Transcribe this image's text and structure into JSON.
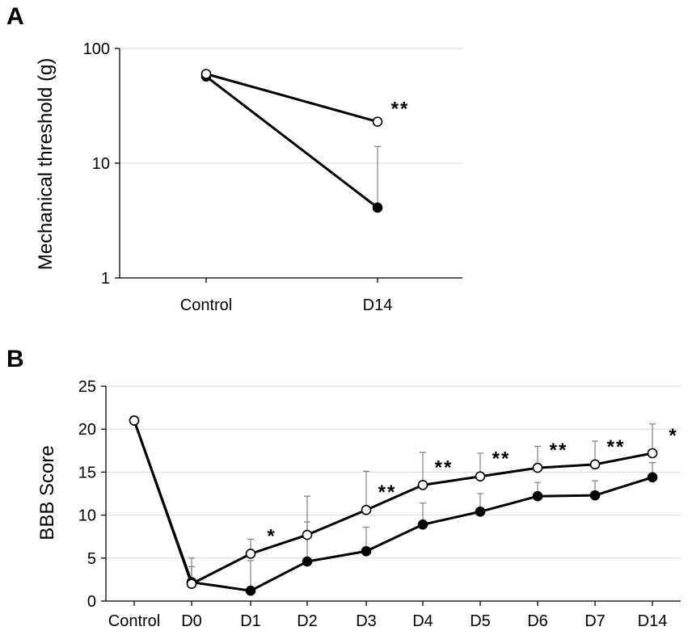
{
  "chart_data": [
    {
      "panel": "A",
      "type": "line",
      "yscale": "log",
      "ylim": [
        1,
        100
      ],
      "ylabel": "Mechanical threshold (g)",
      "yticks": [
        "1",
        "10",
        "100"
      ],
      "categories": [
        "Control",
        "D14"
      ],
      "series": [
        {
          "name": "open",
          "marker": "open-circle",
          "values": [
            60,
            23
          ],
          "error": [
            null,
            null
          ]
        },
        {
          "name": "filled",
          "marker": "filled-circle",
          "values": [
            57,
            4.1
          ],
          "error": [
            null,
            14
          ]
        }
      ],
      "annotations": [
        {
          "category": "D14",
          "text": "**"
        }
      ]
    },
    {
      "panel": "B",
      "type": "line",
      "ylim": [
        0,
        25
      ],
      "ylabel": "BBB Score",
      "yticks": [
        "0",
        "5",
        "10",
        "15",
        "20",
        "25"
      ],
      "categories": [
        "Control",
        "D0",
        "D1",
        "D2",
        "D3",
        "D4",
        "D5",
        "D6",
        "D7",
        "D14"
      ],
      "series": [
        {
          "name": "open",
          "marker": "open-circle",
          "values": [
            21,
            2.0,
            5.5,
            7.7,
            10.6,
            13.5,
            14.5,
            15.5,
            15.9,
            17.2
          ],
          "error": [
            null,
            5.0,
            7.2,
            12.2,
            15.1,
            17.3,
            17.2,
            18.0,
            18.6,
            20.6
          ]
        },
        {
          "name": "filled",
          "marker": "filled-circle",
          "values": [
            21,
            2.2,
            1.2,
            4.6,
            5.8,
            8.9,
            10.4,
            12.2,
            12.3,
            14.4
          ],
          "error": [
            null,
            4.0,
            4.7,
            9.2,
            8.6,
            11.4,
            12.5,
            13.8,
            14.0,
            16.1
          ]
        }
      ],
      "annotations": [
        {
          "category": "D1",
          "text": "*"
        },
        {
          "category": "D3",
          "text": "**"
        },
        {
          "category": "D4",
          "text": "**"
        },
        {
          "category": "D5",
          "text": "**"
        },
        {
          "category": "D6",
          "text": "**"
        },
        {
          "category": "D7",
          "text": "**"
        },
        {
          "category": "D14",
          "text": "*"
        }
      ]
    }
  ]
}
